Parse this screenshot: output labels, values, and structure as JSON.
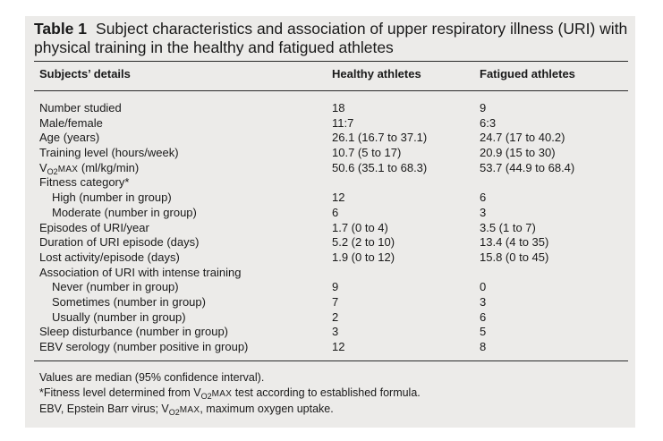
{
  "table": {
    "number": "Table 1",
    "caption": "Subject characteristics and association of upper respiratory illness (URI) with physical training in the healthy and fatigued athletes",
    "headers": [
      "Subjects’ details",
      "Healthy athletes",
      "Fatigued athletes"
    ],
    "rows": [
      {
        "label": "Number studied",
        "healthy": "18",
        "fatigued": "9"
      },
      {
        "label": "Male/female",
        "healthy": "11:7",
        "fatigued": "6:3"
      },
      {
        "label": "Age (years)",
        "healthy": "26.1 (16.7 to 37.1)",
        "fatigued": "24.7 (17 to 40.2)"
      },
      {
        "label": "Training level (hours/week)",
        "healthy": "10.7 (5 to 17)",
        "fatigued": "20.9 (15 to 30)"
      },
      {
        "label_prefix": "V",
        "label_sub": "O2",
        "label_sc": "MAX",
        "label_suffix": " (ml/kg/min)",
        "healthy": "50.6 (35.1 to 68.3)",
        "fatigued": "53.7 (44.9 to 68.4)"
      },
      {
        "label": "Fitness category*",
        "healthy": "",
        "fatigued": ""
      },
      {
        "label": "High (number in group)",
        "indent": true,
        "healthy": "12",
        "fatigued": "6"
      },
      {
        "label": "Moderate (number in group)",
        "indent": true,
        "healthy": "6",
        "fatigued": "3"
      },
      {
        "label": "Episodes of URI/year",
        "healthy": "1.7 (0 to 4)",
        "fatigued": "3.5 (1 to 7)"
      },
      {
        "label": "Duration of URI episode (days)",
        "healthy": "5.2 (2 to 10)",
        "fatigued": "13.4 (4 to 35)"
      },
      {
        "label": "Lost activity/episode (days)",
        "healthy": "1.9 (0 to 12)",
        "fatigued": "15.8 (0 to 45)"
      },
      {
        "label": "Association of URI with intense training",
        "healthy": "",
        "fatigued": ""
      },
      {
        "label": "Never (number in group)",
        "indent": true,
        "healthy": "9",
        "fatigued": "0"
      },
      {
        "label": "Sometimes (number in group)",
        "indent": true,
        "healthy": "7",
        "fatigued": "3"
      },
      {
        "label": "Usually (number in group)",
        "indent": true,
        "healthy": "2",
        "fatigued": "6"
      },
      {
        "label": "Sleep disturbance (number in group)",
        "healthy": "3",
        "fatigued": "5"
      },
      {
        "label": "EBV serology (number positive in group)",
        "healthy": "12",
        "fatigued": "8"
      }
    ],
    "footnotes": {
      "line1": "Values are median (95% confidence interval).",
      "line2_prefix": "*Fitness level determined from V",
      "line2_sub": "O2",
      "line2_sc": "MAX",
      "line2_suffix": " test according to established formula.",
      "line3_prefix": "EBV, Epstein Barr virus; V",
      "line3_sub": "O2",
      "line3_sc": "MAX",
      "line3_suffix": ", maximum oxygen uptake."
    }
  }
}
